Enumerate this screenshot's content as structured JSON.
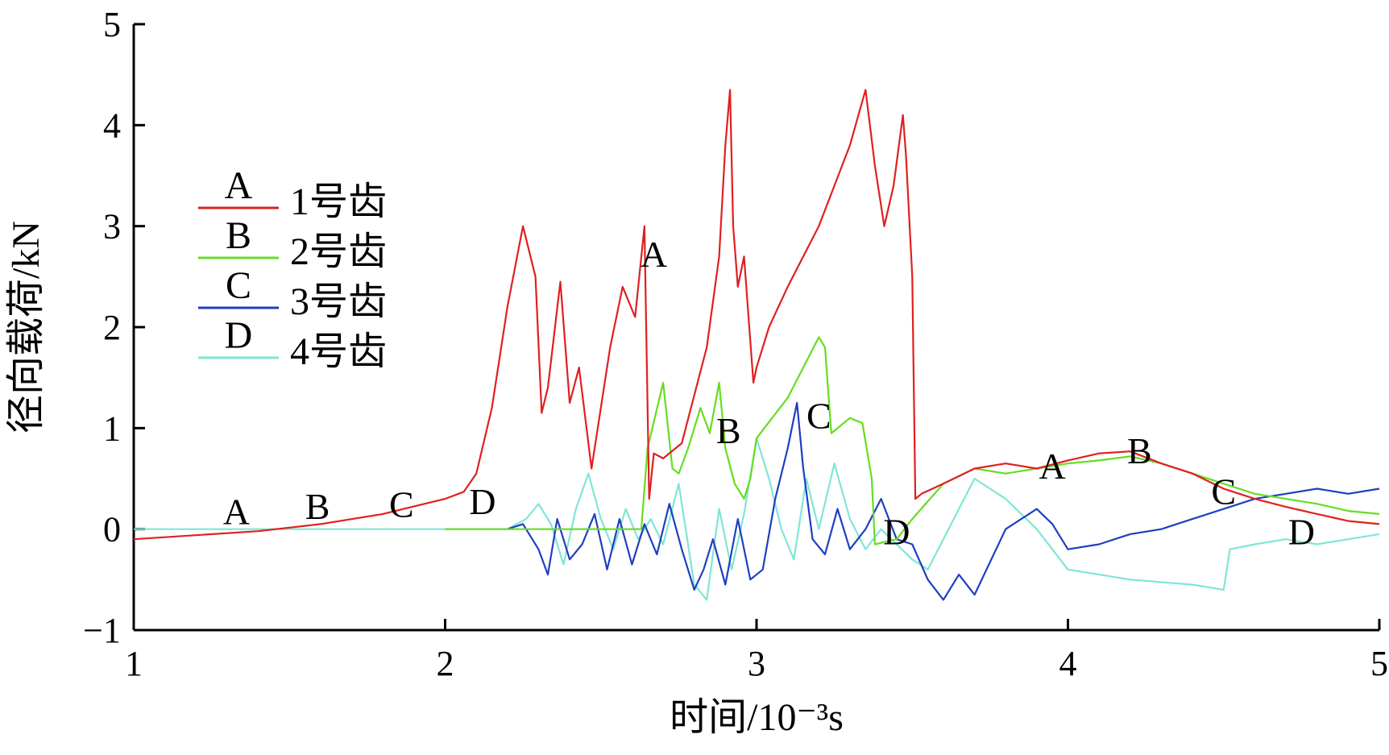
{
  "chart_data": {
    "type": "line",
    "title": "",
    "xlabel": "时间/10⁻³s",
    "ylabel": "径向载荷/kN",
    "xlim": [
      1,
      5
    ],
    "ylim": [
      -1,
      5
    ],
    "xticks": [
      1,
      2,
      3,
      4,
      5
    ],
    "yticks": [
      -1,
      0,
      1,
      2,
      3,
      4,
      5
    ],
    "xtick_labels": [
      "1",
      "2",
      "3",
      "4",
      "5"
    ],
    "ytick_labels": [
      "−1",
      "0",
      "1",
      "2",
      "3",
      "4",
      "5"
    ],
    "grid": false,
    "legend_position": "left-middle",
    "legend": [
      {
        "marker": "A",
        "label": "1号齿",
        "color": "#e02020"
      },
      {
        "marker": "B",
        "label": "2号齿",
        "color": "#66dd22"
      },
      {
        "marker": "C",
        "label": "3号齿",
        "color": "#1f3fbf"
      },
      {
        "marker": "D",
        "label": "4号齿",
        "color": "#7fe6d6"
      }
    ],
    "series": [
      {
        "name": "1号齿",
        "marker": "A",
        "color": "#e02020",
        "x": [
          1.0,
          1.2,
          1.4,
          1.6,
          1.8,
          2.0,
          2.06,
          2.1,
          2.15,
          2.2,
          2.25,
          2.29,
          2.31,
          2.33,
          2.37,
          2.4,
          2.43,
          2.47,
          2.49,
          2.53,
          2.57,
          2.61,
          2.64,
          2.655,
          2.67,
          2.7,
          2.76,
          2.84,
          2.88,
          2.9,
          2.915,
          2.925,
          2.94,
          2.96,
          2.99,
          3.0,
          3.04,
          3.1,
          3.15,
          3.2,
          3.25,
          3.3,
          3.35,
          3.38,
          3.41,
          3.44,
          3.47,
          3.48,
          3.5,
          3.51,
          3.53,
          3.6,
          3.7,
          3.8,
          3.9,
          4.0,
          4.1,
          4.2,
          4.3,
          4.4,
          4.5,
          4.6,
          4.7,
          4.8,
          4.9,
          5.0
        ],
        "y": [
          -0.1,
          -0.06,
          -0.02,
          0.05,
          0.15,
          0.3,
          0.37,
          0.55,
          1.2,
          2.2,
          3.0,
          2.5,
          1.15,
          1.4,
          2.45,
          1.25,
          1.6,
          0.6,
          1.0,
          1.8,
          2.4,
          2.1,
          3.0,
          0.3,
          0.75,
          0.7,
          0.85,
          1.8,
          2.7,
          3.8,
          4.35,
          3.0,
          2.4,
          2.7,
          1.45,
          1.6,
          2.0,
          2.4,
          2.7,
          3.0,
          3.4,
          3.8,
          4.35,
          3.6,
          3.0,
          3.4,
          4.1,
          3.7,
          2.5,
          0.3,
          0.35,
          0.45,
          0.6,
          0.65,
          0.6,
          0.68,
          0.75,
          0.77,
          0.65,
          0.55,
          0.4,
          0.3,
          0.22,
          0.15,
          0.08,
          0.05
        ]
      },
      {
        "name": "2号齿",
        "marker": "B",
        "color": "#66dd22",
        "x": [
          2.0,
          2.2,
          2.4,
          2.6,
          2.63,
          2.65,
          2.7,
          2.73,
          2.75,
          2.78,
          2.82,
          2.85,
          2.88,
          2.9,
          2.93,
          2.96,
          2.98,
          3.0,
          3.05,
          3.1,
          3.15,
          3.2,
          3.22,
          3.24,
          3.3,
          3.34,
          3.37,
          3.38,
          3.45,
          3.5,
          3.6,
          3.7,
          3.8,
          3.9,
          4.0,
          4.1,
          4.2,
          4.3,
          4.4,
          4.5,
          4.6,
          4.7,
          4.8,
          4.9,
          5.0
        ],
        "y": [
          0.0,
          0.0,
          0.0,
          0.0,
          0.0,
          0.8,
          1.45,
          0.6,
          0.55,
          0.8,
          1.2,
          0.95,
          1.45,
          0.8,
          0.45,
          0.3,
          0.5,
          0.9,
          1.1,
          1.3,
          1.6,
          1.9,
          1.8,
          0.95,
          1.1,
          1.05,
          0.5,
          -0.15,
          -0.1,
          0.1,
          0.45,
          0.6,
          0.55,
          0.6,
          0.65,
          0.68,
          0.72,
          0.65,
          0.55,
          0.45,
          0.35,
          0.3,
          0.25,
          0.18,
          0.15
        ]
      },
      {
        "name": "3号齿",
        "marker": "C",
        "color": "#1f3fbf",
        "x": [
          2.2,
          2.25,
          2.3,
          2.33,
          2.36,
          2.4,
          2.44,
          2.48,
          2.52,
          2.56,
          2.6,
          2.64,
          2.68,
          2.72,
          2.76,
          2.8,
          2.83,
          2.86,
          2.9,
          2.94,
          2.98,
          3.02,
          3.06,
          3.1,
          3.13,
          3.15,
          3.18,
          3.22,
          3.26,
          3.3,
          3.35,
          3.4,
          3.45,
          3.5,
          3.55,
          3.6,
          3.65,
          3.7,
          3.8,
          3.9,
          3.95,
          4.0,
          4.1,
          4.2,
          4.3,
          4.4,
          4.5,
          4.6,
          4.7,
          4.8,
          4.9,
          5.0
        ],
        "y": [
          0.0,
          0.05,
          -0.2,
          -0.45,
          0.1,
          -0.3,
          -0.15,
          0.15,
          -0.4,
          0.1,
          -0.35,
          0.05,
          -0.25,
          0.25,
          -0.2,
          -0.6,
          -0.4,
          -0.1,
          -0.55,
          0.1,
          -0.5,
          -0.4,
          0.3,
          0.8,
          1.25,
          0.6,
          -0.1,
          -0.25,
          0.2,
          -0.2,
          0.0,
          0.3,
          -0.1,
          -0.15,
          -0.5,
          -0.7,
          -0.45,
          -0.65,
          0.0,
          0.2,
          0.05,
          -0.2,
          -0.15,
          -0.05,
          0.0,
          0.1,
          0.2,
          0.3,
          0.35,
          0.4,
          0.35,
          0.4
        ]
      },
      {
        "name": "4号齿",
        "marker": "D",
        "color": "#7fe6d6",
        "x": [
          1.0,
          1.5,
          2.0,
          2.2,
          2.26,
          2.3,
          2.34,
          2.38,
          2.42,
          2.46,
          2.5,
          2.54,
          2.58,
          2.62,
          2.66,
          2.7,
          2.75,
          2.8,
          2.84,
          2.88,
          2.92,
          2.96,
          3.0,
          3.04,
          3.08,
          3.12,
          3.16,
          3.2,
          3.25,
          3.3,
          3.35,
          3.4,
          3.45,
          3.5,
          3.55,
          3.6,
          3.65,
          3.7,
          3.8,
          3.9,
          4.0,
          4.2,
          4.4,
          4.5,
          4.52,
          4.6,
          4.7,
          4.8,
          4.9,
          5.0
        ],
        "y": [
          0.0,
          0.0,
          0.0,
          0.0,
          0.1,
          0.25,
          0.05,
          -0.35,
          0.2,
          0.55,
          0.1,
          -0.2,
          0.2,
          -0.1,
          0.1,
          -0.15,
          0.45,
          -0.55,
          -0.7,
          0.2,
          -0.4,
          0.15,
          0.9,
          0.5,
          0.0,
          -0.3,
          0.5,
          0.0,
          0.65,
          0.1,
          -0.2,
          0.0,
          -0.15,
          -0.3,
          -0.4,
          -0.1,
          0.2,
          0.5,
          0.3,
          0.0,
          -0.4,
          -0.5,
          -0.55,
          -0.6,
          -0.2,
          -0.15,
          -0.1,
          -0.15,
          -0.1,
          -0.05
        ]
      }
    ],
    "annotations": [
      {
        "text": "A",
        "x": 1.33,
        "y": 0.05
      },
      {
        "text": "B",
        "x": 1.59,
        "y": 0.1
      },
      {
        "text": "C",
        "x": 1.86,
        "y": 0.12
      },
      {
        "text": "D",
        "x": 2.12,
        "y": 0.15
      },
      {
        "text": "A",
        "x": 2.67,
        "y": 2.6
      },
      {
        "text": "B",
        "x": 2.91,
        "y": 0.85
      },
      {
        "text": "C",
        "x": 3.2,
        "y": 1.0
      },
      {
        "text": "D",
        "x": 3.45,
        "y": -0.15
      },
      {
        "text": "A",
        "x": 3.95,
        "y": 0.5
      },
      {
        "text": "B",
        "x": 4.23,
        "y": 0.65
      },
      {
        "text": "C",
        "x": 4.5,
        "y": 0.25
      },
      {
        "text": "D",
        "x": 4.75,
        "y": -0.15
      }
    ]
  }
}
